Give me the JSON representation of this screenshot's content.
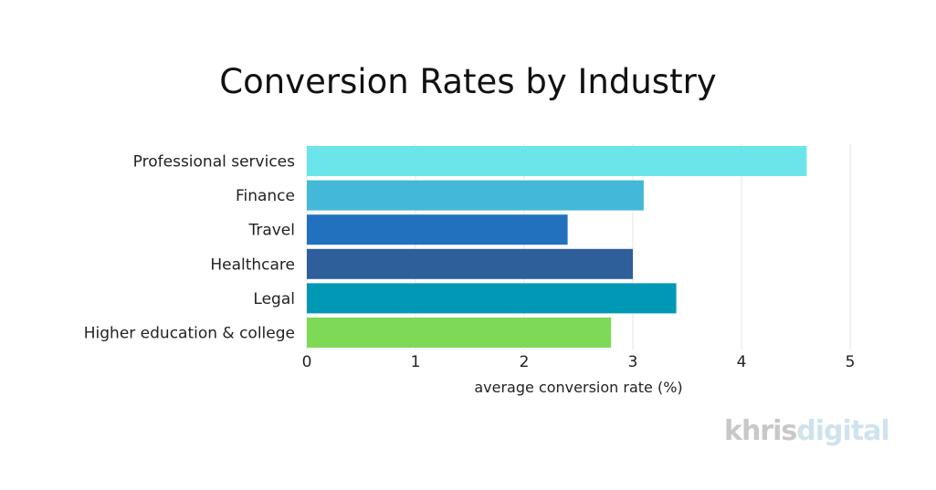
{
  "chart_data": {
    "type": "bar",
    "orientation": "horizontal",
    "title": "Conversion Rates by Industry",
    "xlabel": "average conversion rate (%)",
    "ylabel": "",
    "categories": [
      "Professional services",
      "Finance",
      "Travel",
      "Healthcare",
      "Legal",
      "Higher education & college"
    ],
    "values": [
      4.6,
      3.1,
      2.4,
      3.0,
      3.4,
      2.8
    ],
    "colors": [
      "#6ce5ea",
      "#44b8d8",
      "#2171be",
      "#2e5f9a",
      "#0098b5",
      "#7ed957"
    ],
    "xlim": [
      0,
      5
    ],
    "xticks": [
      "0",
      "1",
      "2",
      "3",
      "4",
      "5"
    ],
    "grid": true,
    "legend": "none"
  },
  "logo": {
    "part1": "khris",
    "part2": "digital"
  }
}
